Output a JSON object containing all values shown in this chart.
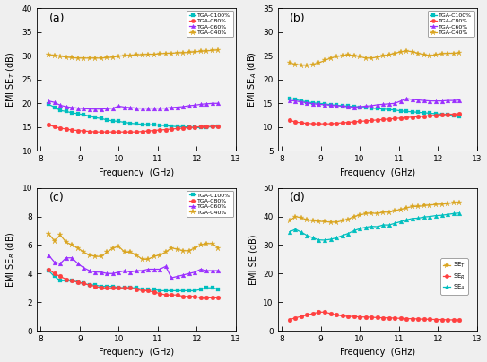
{
  "freq": [
    8.2,
    8.35,
    8.5,
    8.65,
    8.8,
    8.95,
    9.1,
    9.25,
    9.4,
    9.55,
    9.7,
    9.85,
    10.0,
    10.15,
    10.3,
    10.45,
    10.6,
    10.75,
    10.9,
    11.05,
    11.2,
    11.35,
    11.5,
    11.65,
    11.8,
    11.95,
    12.1,
    12.25,
    12.4,
    12.55
  ],
  "a_C100": [
    19.8,
    19.2,
    18.5,
    18.3,
    18.0,
    17.8,
    17.6,
    17.3,
    17.0,
    16.8,
    16.5,
    16.3,
    16.2,
    16.0,
    15.8,
    15.7,
    15.6,
    15.5,
    15.5,
    15.4,
    15.3,
    15.2,
    15.1,
    15.1,
    15.0,
    14.9,
    14.9,
    15.0,
    15.1,
    15.2
  ],
  "a_C80": [
    15.5,
    15.1,
    14.8,
    14.6,
    14.4,
    14.3,
    14.2,
    14.1,
    14.0,
    14.0,
    14.0,
    14.0,
    14.0,
    14.0,
    14.0,
    14.0,
    14.1,
    14.2,
    14.3,
    14.4,
    14.5,
    14.6,
    14.7,
    14.8,
    14.9,
    15.0,
    15.1,
    15.1,
    15.2,
    15.2
  ],
  "a_C60": [
    20.5,
    20.2,
    19.6,
    19.3,
    19.1,
    19.0,
    18.9,
    18.8,
    18.8,
    18.8,
    18.9,
    19.0,
    19.4,
    19.2,
    19.1,
    19.0,
    19.0,
    19.0,
    19.0,
    19.0,
    19.0,
    19.1,
    19.2,
    19.3,
    19.5,
    19.6,
    19.8,
    19.9,
    20.0,
    20.0
  ],
  "a_C40": [
    30.2,
    30.1,
    29.9,
    29.7,
    29.6,
    29.5,
    29.5,
    29.5,
    29.5,
    29.5,
    29.6,
    29.7,
    29.9,
    30.0,
    30.1,
    30.2,
    30.2,
    30.3,
    30.3,
    30.4,
    30.5,
    30.5,
    30.6,
    30.6,
    30.7,
    30.8,
    30.9,
    31.0,
    31.1,
    31.2
  ],
  "b_C100": [
    16.0,
    15.8,
    15.5,
    15.3,
    15.1,
    15.0,
    14.9,
    14.7,
    14.6,
    14.5,
    14.4,
    14.3,
    14.2,
    14.1,
    14.0,
    13.9,
    13.8,
    13.7,
    13.6,
    13.4,
    13.3,
    13.2,
    13.1,
    13.0,
    12.9,
    12.8,
    12.7,
    12.6,
    12.4,
    12.2
  ],
  "b_C80": [
    11.4,
    11.1,
    10.9,
    10.8,
    10.7,
    10.7,
    10.7,
    10.7,
    10.8,
    10.9,
    11.0,
    11.1,
    11.2,
    11.3,
    11.4,
    11.5,
    11.6,
    11.7,
    11.8,
    11.9,
    12.0,
    12.1,
    12.2,
    12.3,
    12.4,
    12.5,
    12.6,
    12.7,
    12.7,
    12.8
  ],
  "b_C60": [
    15.6,
    15.5,
    15.3,
    15.1,
    14.9,
    14.8,
    14.7,
    14.6,
    14.5,
    14.4,
    14.3,
    14.2,
    14.3,
    14.4,
    14.5,
    14.7,
    14.8,
    14.9,
    15.0,
    15.5,
    16.0,
    15.8,
    15.7,
    15.6,
    15.5,
    15.5,
    15.5,
    15.6,
    15.6,
    15.7
  ],
  "b_C40": [
    23.5,
    23.2,
    23.0,
    23.0,
    23.2,
    23.5,
    24.0,
    24.5,
    24.8,
    25.0,
    25.2,
    25.0,
    24.8,
    24.5,
    24.5,
    24.7,
    25.0,
    25.2,
    25.5,
    25.8,
    26.0,
    25.8,
    25.5,
    25.2,
    25.0,
    25.2,
    25.4,
    25.5,
    25.5,
    25.6
  ],
  "c_C100": [
    4.2,
    3.8,
    3.5,
    3.5,
    3.5,
    3.4,
    3.3,
    3.2,
    3.2,
    3.1,
    3.1,
    3.1,
    3.0,
    3.0,
    3.0,
    3.0,
    2.9,
    2.9,
    2.9,
    2.8,
    2.8,
    2.8,
    2.8,
    2.8,
    2.8,
    2.8,
    2.9,
    3.0,
    3.0,
    2.9
  ],
  "c_C80": [
    4.3,
    4.0,
    3.8,
    3.6,
    3.5,
    3.4,
    3.3,
    3.2,
    3.1,
    3.0,
    3.0,
    3.0,
    3.0,
    3.0,
    3.0,
    2.9,
    2.8,
    2.8,
    2.7,
    2.6,
    2.5,
    2.5,
    2.5,
    2.4,
    2.4,
    2.4,
    2.3,
    2.3,
    2.3,
    2.3
  ],
  "c_C60": [
    5.3,
    4.8,
    4.7,
    5.1,
    5.1,
    4.7,
    4.4,
    4.2,
    4.1,
    4.1,
    4.0,
    4.0,
    4.1,
    4.2,
    4.1,
    4.2,
    4.2,
    4.3,
    4.3,
    4.3,
    4.5,
    3.7,
    3.8,
    3.9,
    4.0,
    4.1,
    4.3,
    4.2,
    4.2,
    4.2
  ],
  "c_C40": [
    6.8,
    6.3,
    6.7,
    6.2,
    6.0,
    5.8,
    5.5,
    5.3,
    5.2,
    5.2,
    5.5,
    5.8,
    5.9,
    5.5,
    5.5,
    5.3,
    5.0,
    5.0,
    5.2,
    5.3,
    5.5,
    5.8,
    5.7,
    5.6,
    5.6,
    5.8,
    6.0,
    6.1,
    6.1,
    5.8
  ],
  "d_SET": [
    38.5,
    40.0,
    39.5,
    38.8,
    38.5,
    38.3,
    38.2,
    38.0,
    38.0,
    38.5,
    39.0,
    40.0,
    40.5,
    41.0,
    41.2,
    41.0,
    41.5,
    41.5,
    42.0,
    42.5,
    43.0,
    43.5,
    43.5,
    43.8,
    44.0,
    44.2,
    44.3,
    44.5,
    44.8,
    45.0
  ],
  "d_SER": [
    3.9,
    4.5,
    5.0,
    5.5,
    6.0,
    6.5,
    6.5,
    6.0,
    5.5,
    5.2,
    5.0,
    5.0,
    4.8,
    4.8,
    4.7,
    4.6,
    4.5,
    4.5,
    4.4,
    4.3,
    4.2,
    4.2,
    4.1,
    4.0,
    4.0,
    3.9,
    3.9,
    3.8,
    3.8,
    3.8
  ],
  "d_SEA": [
    34.6,
    35.5,
    34.5,
    33.3,
    32.5,
    31.8,
    31.7,
    32.0,
    32.5,
    33.3,
    34.0,
    35.0,
    35.7,
    36.2,
    36.5,
    36.4,
    37.0,
    37.0,
    37.6,
    38.2,
    38.8,
    39.3,
    39.4,
    39.8,
    40.0,
    40.3,
    40.4,
    40.7,
    41.0,
    41.2
  ],
  "color_C100": "#00BFBF",
  "color_C80": "#FF4040",
  "color_C60": "#9B30FF",
  "color_C40": "#DAA520",
  "color_SET": "#DAA520",
  "color_SER": "#FF4040",
  "color_SEA": "#00BFBF",
  "xlabel": "Frequency  (GHz)",
  "ylabel_a": "EMI SE$_T$ (dB)",
  "ylabel_b": "EMI SE$_A$ (dB)",
  "ylabel_c": "EMI SE$_R$ (dB)",
  "ylabel_d": "EMI SE (dB)",
  "xlim": [
    7.9,
    13.0
  ],
  "ylim_a": [
    10,
    40
  ],
  "ylim_b": [
    5,
    35
  ],
  "ylim_c": [
    0,
    10
  ],
  "ylim_d": [
    0,
    50
  ],
  "yticks_a": [
    10,
    15,
    20,
    25,
    30,
    35,
    40
  ],
  "yticks_b": [
    5,
    10,
    15,
    20,
    25,
    30,
    35
  ],
  "yticks_c": [
    0,
    2,
    4,
    6,
    8,
    10
  ],
  "yticks_d": [
    0,
    10,
    20,
    30,
    40,
    50
  ],
  "xticks": [
    8,
    9,
    10,
    11,
    12,
    13
  ],
  "bg_color": "#F2F2F2",
  "fig_bg": "#EFEFEF"
}
